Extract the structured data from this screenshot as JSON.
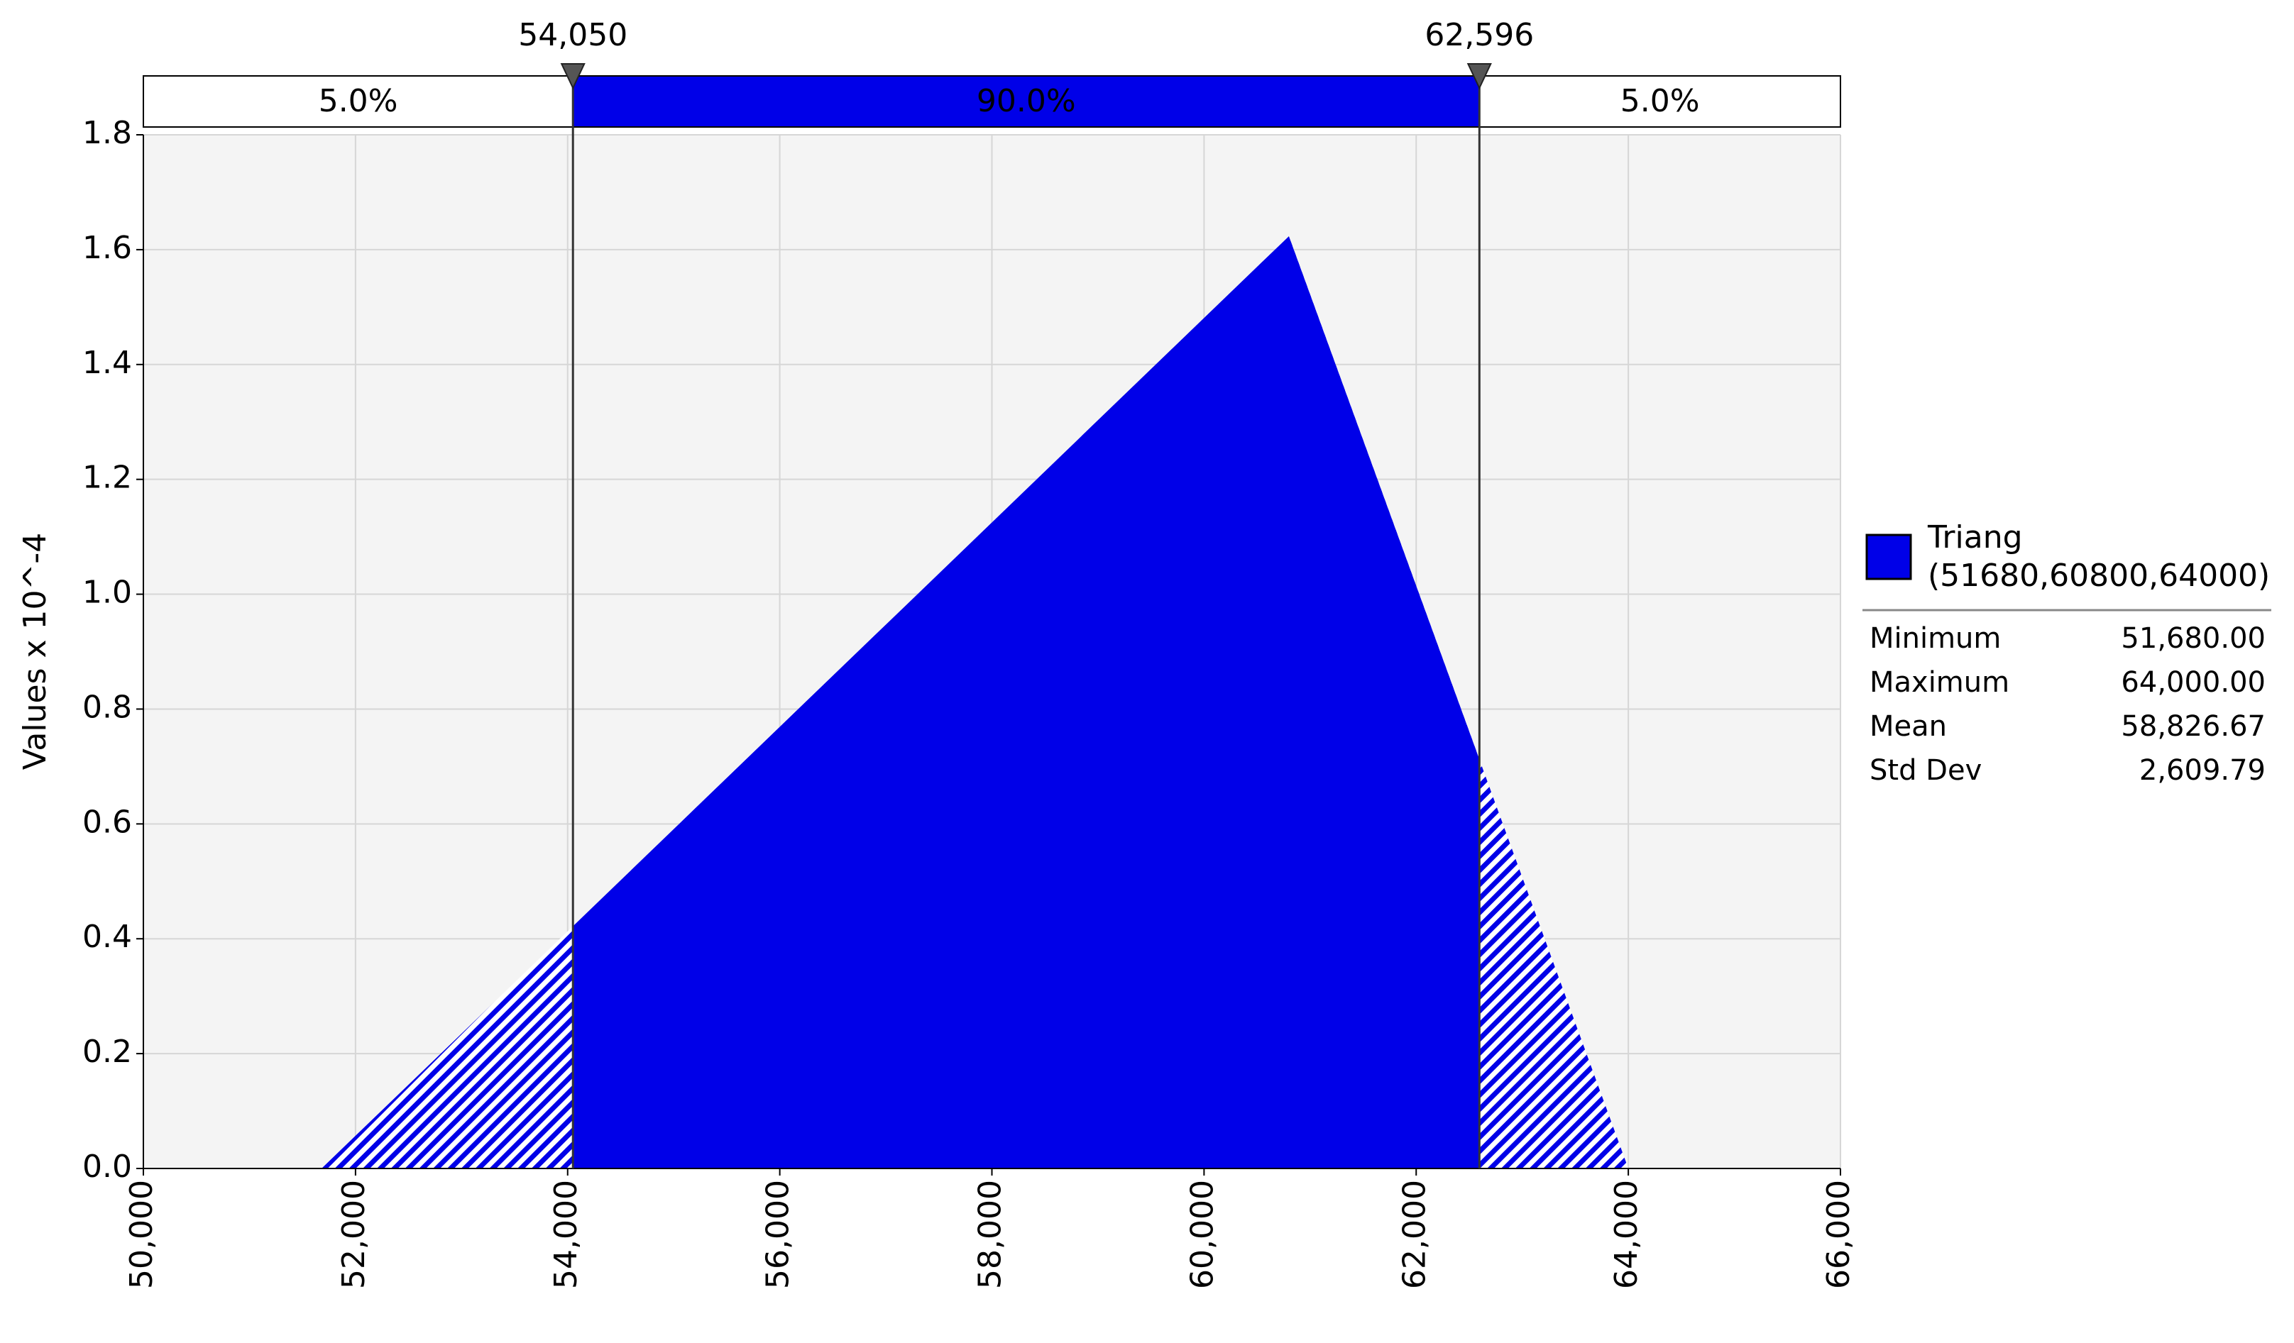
{
  "chart_data": {
    "type": "area",
    "ylabel": "Values x 10^-4",
    "x": [
      50000,
      51680,
      60800,
      64000,
      66000
    ],
    "series": [
      {
        "name": "Triang",
        "subtitle": "(51680,60800,64000)",
        "color": "#0000e8",
        "values": [
          0,
          0,
          1.6234,
          0,
          0
        ]
      }
    ],
    "xlim": [
      50000,
      66000
    ],
    "xticks": [
      {
        "value": 50000,
        "label": "50,000"
      },
      {
        "value": 52000,
        "label": "52,000"
      },
      {
        "value": 54000,
        "label": "54,000"
      },
      {
        "value": 56000,
        "label": "56,000"
      },
      {
        "value": 58000,
        "label": "58,000"
      },
      {
        "value": 60000,
        "label": "60,000"
      },
      {
        "value": 62000,
        "label": "62,000"
      },
      {
        "value": 64000,
        "label": "64,000"
      },
      {
        "value": 66000,
        "label": "66,000"
      }
    ],
    "ylim": [
      0,
      1.8
    ],
    "yticks": [
      {
        "value": 0,
        "label": "0.0"
      },
      0.2,
      0.4,
      0.6,
      0.8,
      {
        "value": 1,
        "label": "1.0"
      },
      1.2,
      1.4,
      1.6,
      1.8
    ],
    "grid": true,
    "delimiters": [
      {
        "value": 54050,
        "label": "54,050"
      },
      {
        "value": 62596,
        "label": "62,596"
      }
    ],
    "bands": [
      {
        "value": 5,
        "label": "5.0%"
      },
      {
        "value": 90,
        "label": "90.0%"
      },
      {
        "value": 5,
        "label": "5.0%"
      }
    ],
    "stats": [
      [
        "Minimum",
        "51,680.00"
      ],
      [
        "Maximum",
        "64,000.00"
      ],
      [
        "Mean",
        "58,826.67"
      ],
      [
        "Std Dev",
        "2,609.79"
      ]
    ]
  }
}
